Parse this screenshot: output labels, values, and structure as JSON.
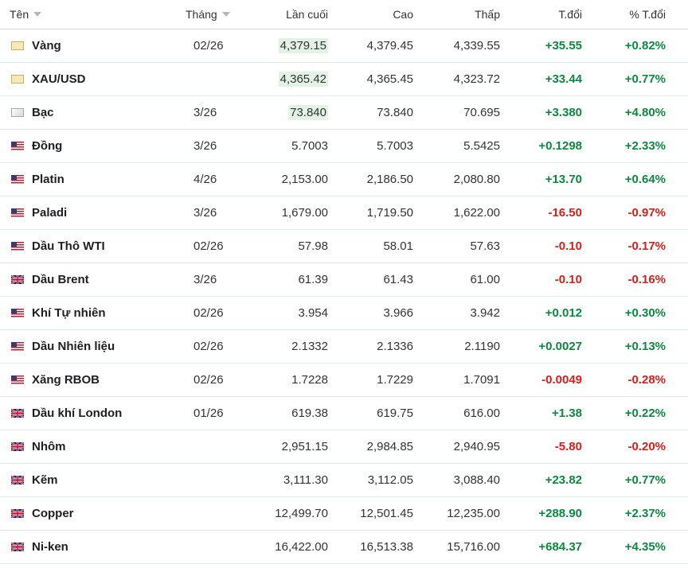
{
  "header": {
    "name": "Tên",
    "month": "Tháng",
    "last": "Lần cuối",
    "high": "Cao",
    "low": "Thấp",
    "change": "T.đổi",
    "change_pct": "% T.đổi"
  },
  "colors": {
    "positive": "#0b8a3e",
    "negative": "#d91e18",
    "highlight": "#e2f3e6"
  },
  "rows": [
    {
      "flag": "gold-icon",
      "name": "Vàng",
      "month": "02/26",
      "last": "4,379.15",
      "high": "4,379.45",
      "low": "4,339.55",
      "change": "+35.55",
      "change_pct": "+0.82%",
      "dir": "pos",
      "highlight": true
    },
    {
      "flag": "gold-icon",
      "name": "XAU/USD",
      "month": "",
      "last": "4,365.42",
      "high": "4,365.45",
      "low": "4,323.72",
      "change": "+33.44",
      "change_pct": "+0.77%",
      "dir": "pos",
      "highlight": true
    },
    {
      "flag": "silver-icon",
      "name": "Bạc",
      "month": "3/26",
      "last": "73.840",
      "high": "73.840",
      "low": "70.695",
      "change": "+3.380",
      "change_pct": "+4.80%",
      "dir": "pos",
      "highlight": true
    },
    {
      "flag": "us-flag-icon",
      "name": "Đồng",
      "month": "3/26",
      "last": "5.7003",
      "high": "5.7003",
      "low": "5.5425",
      "change": "+0.1298",
      "change_pct": "+2.33%",
      "dir": "pos",
      "highlight": false
    },
    {
      "flag": "us-flag-icon",
      "name": "Platin",
      "month": "4/26",
      "last": "2,153.00",
      "high": "2,186.50",
      "low": "2,080.80",
      "change": "+13.70",
      "change_pct": "+0.64%",
      "dir": "pos",
      "highlight": false
    },
    {
      "flag": "us-flag-icon",
      "name": "Paladi",
      "month": "3/26",
      "last": "1,679.00",
      "high": "1,719.50",
      "low": "1,622.00",
      "change": "-16.50",
      "change_pct": "-0.97%",
      "dir": "neg",
      "highlight": false
    },
    {
      "flag": "us-flag-icon",
      "name": "Dầu Thô WTI",
      "month": "02/26",
      "last": "57.98",
      "high": "58.01",
      "low": "57.63",
      "change": "-0.10",
      "change_pct": "-0.17%",
      "dir": "neg",
      "highlight": false
    },
    {
      "flag": "uk-flag-icon",
      "name": "Dầu Brent",
      "month": "3/26",
      "last": "61.39",
      "high": "61.43",
      "low": "61.00",
      "change": "-0.10",
      "change_pct": "-0.16%",
      "dir": "neg",
      "highlight": false
    },
    {
      "flag": "us-flag-icon",
      "name": "Khí Tự nhiên",
      "month": "02/26",
      "last": "3.954",
      "high": "3.966",
      "low": "3.942",
      "change": "+0.012",
      "change_pct": "+0.30%",
      "dir": "pos",
      "highlight": false
    },
    {
      "flag": "us-flag-icon",
      "name": "Dầu Nhiên liệu",
      "month": "02/26",
      "last": "2.1332",
      "high": "2.1336",
      "low": "2.1190",
      "change": "+0.0027",
      "change_pct": "+0.13%",
      "dir": "pos",
      "highlight": false
    },
    {
      "flag": "us-flag-icon",
      "name": "Xăng RBOB",
      "month": "02/26",
      "last": "1.7228",
      "high": "1.7229",
      "low": "1.7091",
      "change": "-0.0049",
      "change_pct": "-0.28%",
      "dir": "neg",
      "highlight": false
    },
    {
      "flag": "uk-flag-icon",
      "name": "Dầu khí London",
      "month": "01/26",
      "last": "619.38",
      "high": "619.75",
      "low": "616.00",
      "change": "+1.38",
      "change_pct": "+0.22%",
      "dir": "pos",
      "highlight": false
    },
    {
      "flag": "uk-flag-icon",
      "name": "Nhôm",
      "month": "",
      "last": "2,951.15",
      "high": "2,984.85",
      "low": "2,940.95",
      "change": "-5.80",
      "change_pct": "-0.20%",
      "dir": "neg",
      "highlight": false
    },
    {
      "flag": "uk-flag-icon",
      "name": "Kẽm",
      "month": "",
      "last": "3,111.30",
      "high": "3,112.05",
      "low": "3,088.40",
      "change": "+23.82",
      "change_pct": "+0.77%",
      "dir": "pos",
      "highlight": false
    },
    {
      "flag": "uk-flag-icon",
      "name": "Copper",
      "month": "",
      "last": "12,499.70",
      "high": "12,501.45",
      "low": "12,235.00",
      "change": "+288.90",
      "change_pct": "+2.37%",
      "dir": "pos",
      "highlight": false
    },
    {
      "flag": "uk-flag-icon",
      "name": "Ni-ken",
      "month": "",
      "last": "16,422.00",
      "high": "16,513.38",
      "low": "15,716.00",
      "change": "+684.37",
      "change_pct": "+4.35%",
      "dir": "pos",
      "highlight": false
    }
  ]
}
